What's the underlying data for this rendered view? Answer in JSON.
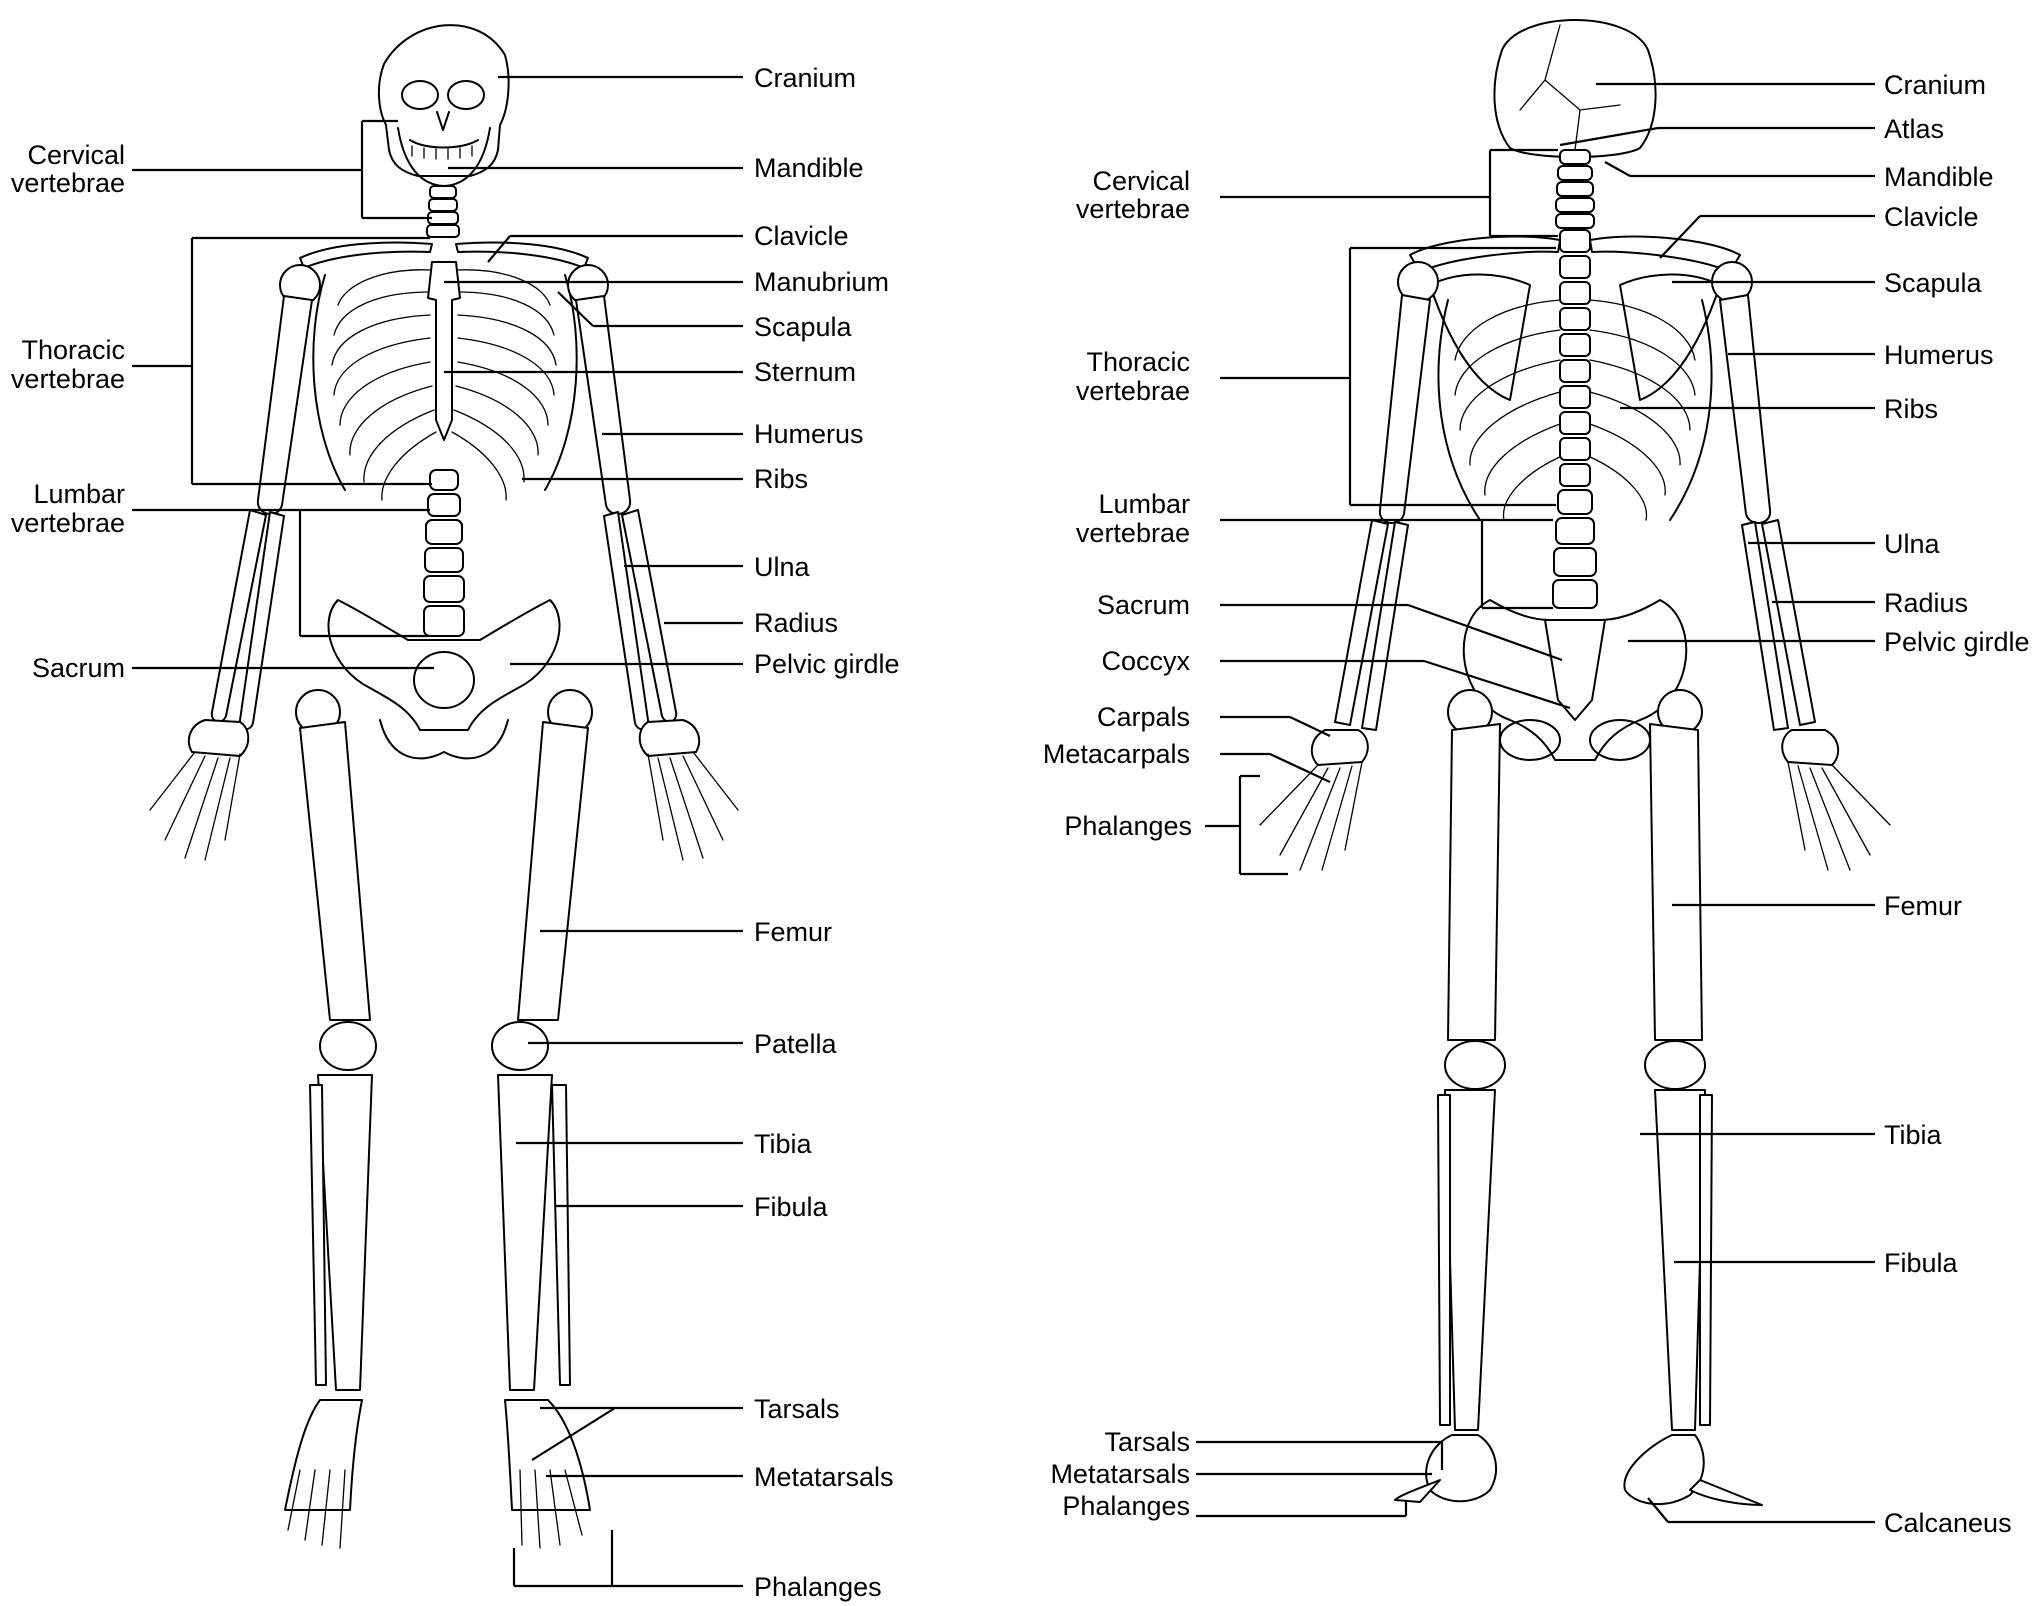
{
  "anterior_labels": {
    "cranium": "Cranium",
    "mandible": "Mandible",
    "clavicle": "Clavicle",
    "manubrium": "Manubrium",
    "scapula": "Scapula",
    "sternum": "Sternum",
    "humerus": "Humerus",
    "ribs": "Ribs",
    "ulna": "Ulna",
    "radius": "Radius",
    "pelvic_girdle": "Pelvic girdle",
    "femur": "Femur",
    "patella": "Patella",
    "tibia": "Tibia",
    "fibula": "Fibula",
    "tarsals": "Tarsals",
    "metatarsals": "Metatarsals",
    "phalanges": "Phalanges",
    "cervical_line1": "Cervical",
    "cervical_line2": "vertebrae",
    "thoracic_line1": "Thoracic",
    "thoracic_line2": "vertebrae",
    "lumbar_line1": "Lumbar",
    "lumbar_line2": "vertebrae",
    "sacrum": "Sacrum"
  },
  "posterior_labels": {
    "cranium": "Cranium",
    "atlas": "Atlas",
    "mandible": "Mandible",
    "clavicle": "Clavicle",
    "scapula": "Scapula",
    "humerus": "Humerus",
    "ribs": "Ribs",
    "ulna": "Ulna",
    "radius": "Radius",
    "pelvic_girdle": "Pelvic girdle",
    "femur": "Femur",
    "tibia": "Tibia",
    "fibula": "Fibula",
    "calcaneus": "Calcaneus",
    "cervical_line1": "Cervical",
    "cervical_line2": "vertebrae",
    "thoracic_line1": "Thoracic",
    "thoracic_line2": "vertebrae",
    "lumbar_line1": "Lumbar",
    "lumbar_line2": "vertebrae",
    "sacrum": "Sacrum",
    "coccyx": "Coccyx",
    "carpals": "Carpals",
    "metacarpals": "Metacarpals",
    "phalanges_hand": "Phalanges",
    "tarsals": "Tarsals",
    "metatarsals": "Metatarsals",
    "phalanges_foot": "Phalanges"
  },
  "colors": {
    "line": "#000000",
    "background": "#ffffff"
  }
}
